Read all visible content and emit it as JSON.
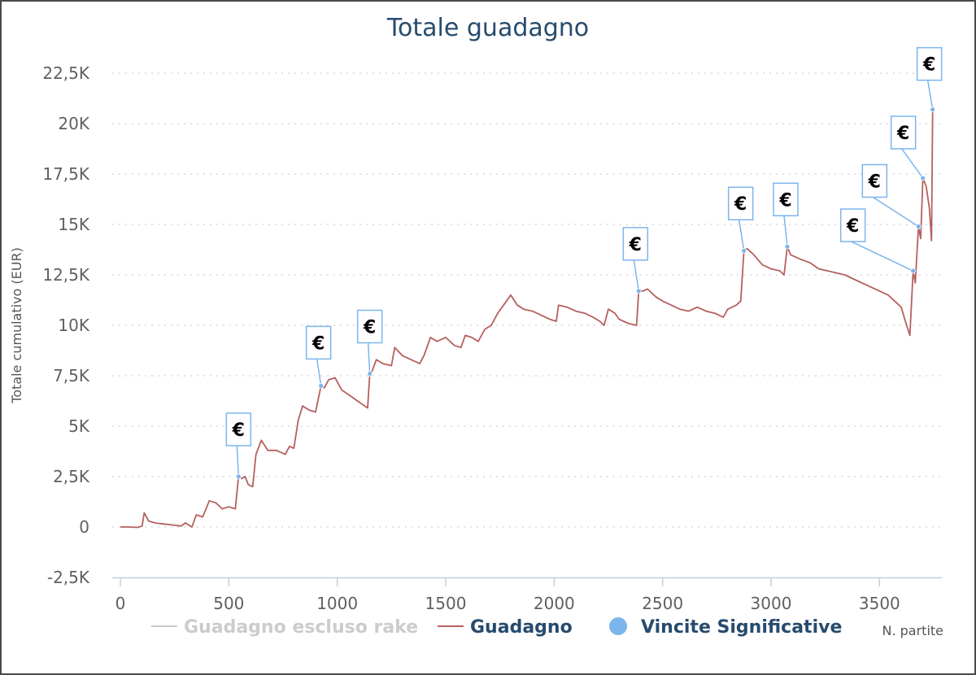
{
  "chart_data": {
    "type": "line",
    "title": "Totale guadagno",
    "xlabel": "N. partite",
    "ylabel": "Totale cumulativo (EUR)",
    "xlim": [
      0,
      3750
    ],
    "ylim": [
      -2500,
      22500
    ],
    "x_ticks": [
      0,
      500,
      1000,
      1500,
      2000,
      2500,
      3000,
      3500
    ],
    "x_tick_labels": [
      "0",
      "500",
      "1000",
      "1500",
      "2000",
      "2500",
      "3000",
      "3500"
    ],
    "y_ticks": [
      -2500,
      0,
      2500,
      5000,
      7500,
      10000,
      12500,
      15000,
      17500,
      20000,
      22500
    ],
    "y_tick_labels": [
      "-2,5K",
      "0",
      "2,5K",
      "5K",
      "7,5K",
      "10K",
      "12,5K",
      "15K",
      "17,5K",
      "20K",
      "22,5K"
    ],
    "grid": "horizontal dotted",
    "legend_position": "bottom",
    "series": [
      {
        "name": "Guadagno escluso rake",
        "color": "#cccccc",
        "hidden": true,
        "points": []
      },
      {
        "name": "Guadagno",
        "color": "#b5605f",
        "points": [
          [
            0,
            0
          ],
          [
            40,
            0
          ],
          [
            80,
            -20
          ],
          [
            100,
            50
          ],
          [
            110,
            700
          ],
          [
            130,
            300
          ],
          [
            160,
            200
          ],
          [
            200,
            150
          ],
          [
            240,
            100
          ],
          [
            280,
            50
          ],
          [
            300,
            200
          ],
          [
            330,
            0
          ],
          [
            350,
            600
          ],
          [
            380,
            500
          ],
          [
            410,
            1300
          ],
          [
            440,
            1200
          ],
          [
            470,
            900
          ],
          [
            500,
            1000
          ],
          [
            530,
            900
          ],
          [
            545,
            2500
          ],
          [
            560,
            2400
          ],
          [
            575,
            2500
          ],
          [
            590,
            2100
          ],
          [
            610,
            2000
          ],
          [
            625,
            3600
          ],
          [
            650,
            4300
          ],
          [
            680,
            3800
          ],
          [
            720,
            3800
          ],
          [
            760,
            3600
          ],
          [
            780,
            4000
          ],
          [
            800,
            3900
          ],
          [
            820,
            5300
          ],
          [
            840,
            6000
          ],
          [
            870,
            5800
          ],
          [
            900,
            5700
          ],
          [
            925,
            7000
          ],
          [
            940,
            6900
          ],
          [
            960,
            7300
          ],
          [
            990,
            7400
          ],
          [
            1020,
            6800
          ],
          [
            1060,
            6500
          ],
          [
            1100,
            6200
          ],
          [
            1140,
            5900
          ],
          [
            1150,
            7600
          ],
          [
            1160,
            7700
          ],
          [
            1180,
            8300
          ],
          [
            1210,
            8100
          ],
          [
            1250,
            8000
          ],
          [
            1265,
            8900
          ],
          [
            1300,
            8500
          ],
          [
            1340,
            8300
          ],
          [
            1380,
            8100
          ],
          [
            1400,
            8500
          ],
          [
            1430,
            9400
          ],
          [
            1460,
            9200
          ],
          [
            1500,
            9400
          ],
          [
            1540,
            9000
          ],
          [
            1570,
            8900
          ],
          [
            1590,
            9500
          ],
          [
            1620,
            9400
          ],
          [
            1650,
            9200
          ],
          [
            1680,
            9800
          ],
          [
            1710,
            10000
          ],
          [
            1740,
            10600
          ],
          [
            1780,
            11200
          ],
          [
            1800,
            11500
          ],
          [
            1830,
            11000
          ],
          [
            1860,
            10800
          ],
          [
            1900,
            10700
          ],
          [
            1940,
            10500
          ],
          [
            1980,
            10300
          ],
          [
            2010,
            10200
          ],
          [
            2020,
            11000
          ],
          [
            2060,
            10900
          ],
          [
            2100,
            10700
          ],
          [
            2140,
            10600
          ],
          [
            2180,
            10400
          ],
          [
            2210,
            10200
          ],
          [
            2230,
            10000
          ],
          [
            2250,
            10800
          ],
          [
            2280,
            10600
          ],
          [
            2300,
            10300
          ],
          [
            2340,
            10100
          ],
          [
            2380,
            10000
          ],
          [
            2390,
            11700
          ],
          [
            2410,
            11700
          ],
          [
            2430,
            11800
          ],
          [
            2470,
            11400
          ],
          [
            2500,
            11200
          ],
          [
            2540,
            11000
          ],
          [
            2580,
            10800
          ],
          [
            2620,
            10700
          ],
          [
            2660,
            10900
          ],
          [
            2700,
            10700
          ],
          [
            2740,
            10600
          ],
          [
            2780,
            10400
          ],
          [
            2800,
            10800
          ],
          [
            2840,
            11000
          ],
          [
            2860,
            11200
          ],
          [
            2875,
            13700
          ],
          [
            2890,
            13800
          ],
          [
            2920,
            13500
          ],
          [
            2960,
            13000
          ],
          [
            3000,
            12800
          ],
          [
            3040,
            12700
          ],
          [
            3060,
            12500
          ],
          [
            3075,
            13900
          ],
          [
            3090,
            13500
          ],
          [
            3130,
            13300
          ],
          [
            3180,
            13100
          ],
          [
            3220,
            12800
          ],
          [
            3260,
            12700
          ],
          [
            3300,
            12600
          ],
          [
            3340,
            12500
          ],
          [
            3380,
            12300
          ],
          [
            3420,
            12100
          ],
          [
            3460,
            11900
          ],
          [
            3500,
            11700
          ],
          [
            3540,
            11500
          ],
          [
            3570,
            11200
          ],
          [
            3600,
            10900
          ],
          [
            3625,
            10000
          ],
          [
            3640,
            9500
          ],
          [
            3655,
            12700
          ],
          [
            3665,
            12100
          ],
          [
            3680,
            14900
          ],
          [
            3690,
            14300
          ],
          [
            3700,
            17300
          ],
          [
            3715,
            16900
          ],
          [
            3730,
            15800
          ],
          [
            3740,
            14200
          ],
          [
            3745,
            20700
          ]
        ]
      }
    ],
    "markers": {
      "name": "Vincite Significative",
      "color": "#7cb5ec",
      "symbol": "€",
      "points": [
        [
          545,
          2500
        ],
        [
          925,
          7000
        ],
        [
          1150,
          7600
        ],
        [
          2390,
          11700
        ],
        [
          2875,
          13700
        ],
        [
          3075,
          13900
        ],
        [
          3655,
          12700
        ],
        [
          3680,
          14900
        ],
        [
          3700,
          17300
        ],
        [
          3745,
          20700
        ]
      ]
    },
    "legend": [
      {
        "label": "Guadagno escluso rake",
        "color": "#cccccc",
        "text_color": "#cccccc",
        "kind": "line"
      },
      {
        "label": "Guadagno",
        "color": "#b5605f",
        "text_color": "#274b6d",
        "kind": "line"
      },
      {
        "label": "Vincite Significative",
        "color": "#7cb5ec",
        "text_color": "#274b6d",
        "kind": "dot"
      }
    ]
  }
}
